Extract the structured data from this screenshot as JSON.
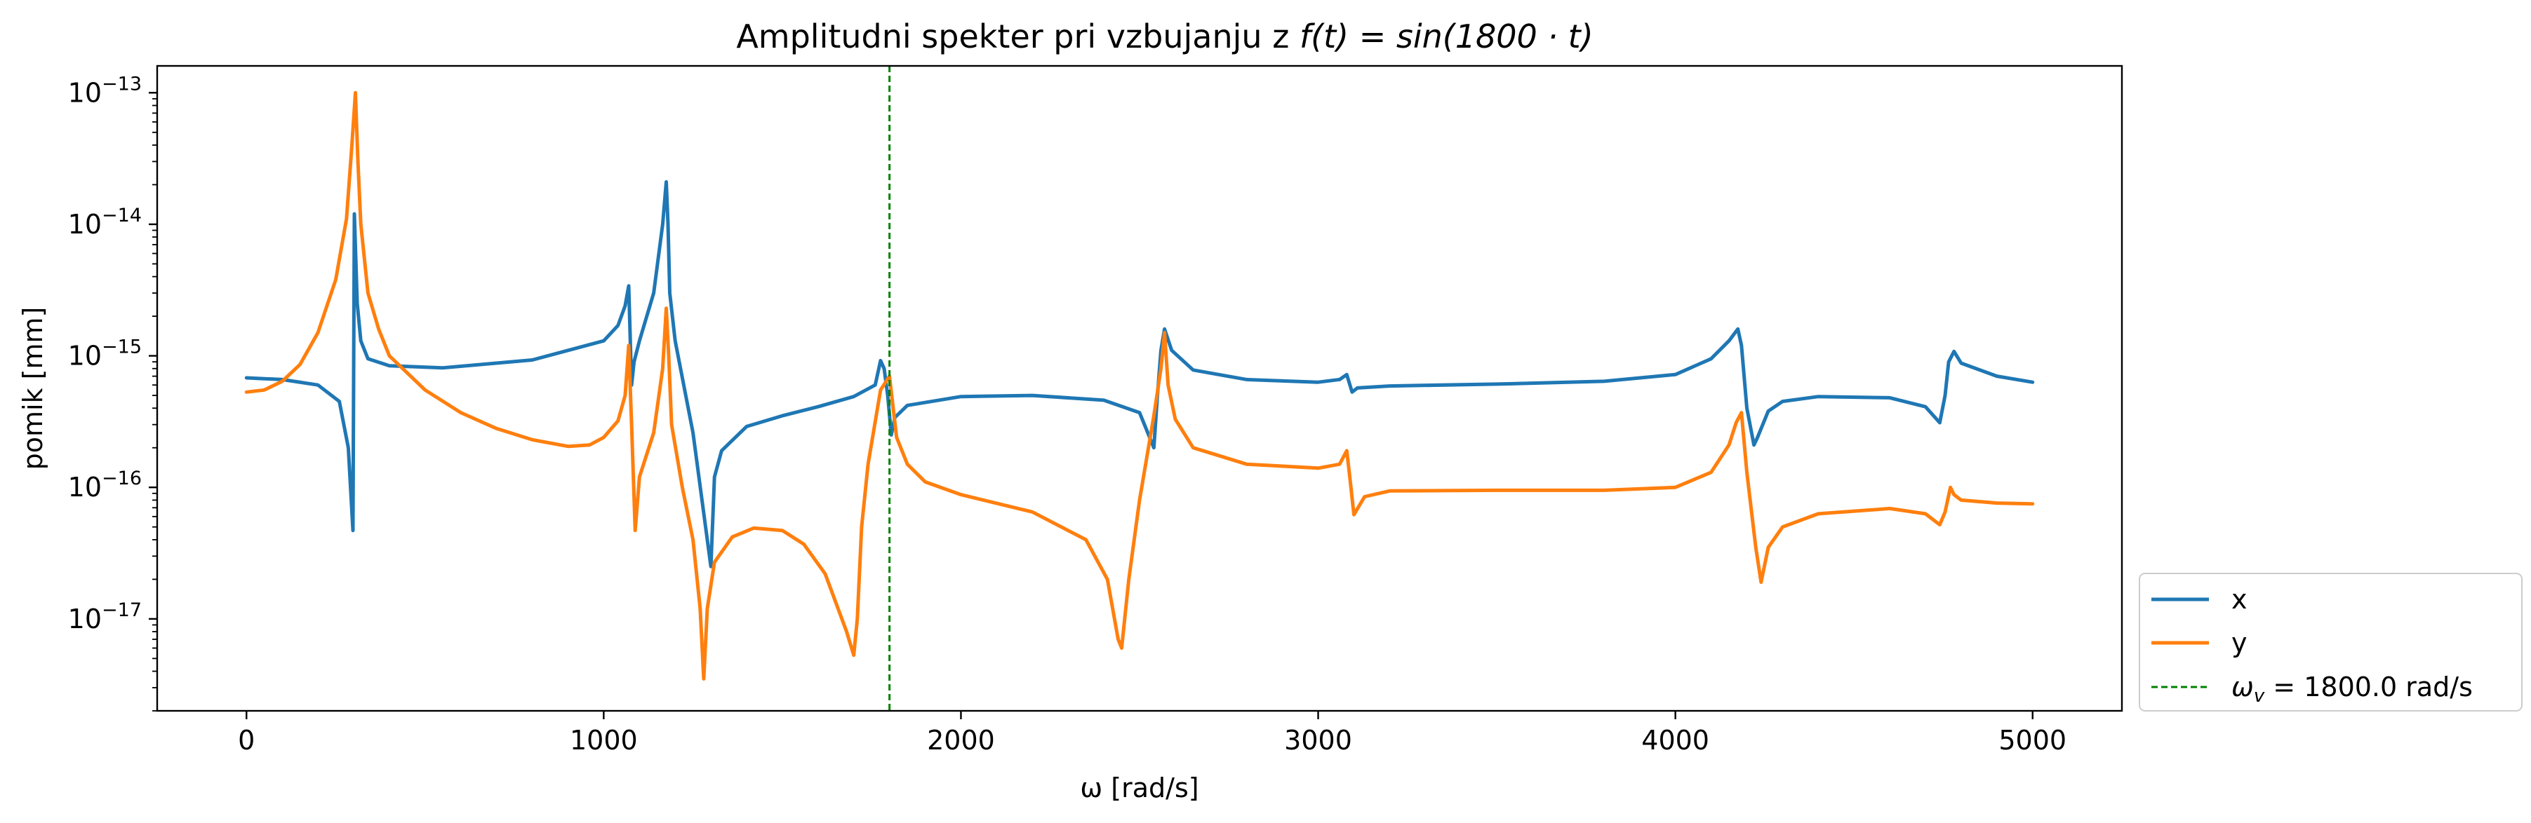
{
  "chart_data": {
    "type": "line",
    "title_prefix": "Amplitudni spekter pri vzbujanju z ",
    "title_math": "f(t) = sin(1800 · t)",
    "xlabel": "ω [rad/s]",
    "ylabel": "pomik [mm]",
    "xlim": [
      -250,
      5250
    ],
    "ylim": [
      2e-18,
      1.6e-13
    ],
    "yscale": "log",
    "x_ticks": [
      0,
      1000,
      2000,
      3000,
      4000,
      5000
    ],
    "y_ticks": [
      {
        "value": 1e-17,
        "base": "10",
        "exp": "−17"
      },
      {
        "value": 1e-16,
        "base": "10",
        "exp": "−16"
      },
      {
        "value": 1e-15,
        "base": "10",
        "exp": "−15"
      },
      {
        "value": 1e-14,
        "base": "10",
        "exp": "−14"
      },
      {
        "value": 1e-13,
        "base": "10",
        "exp": "−13"
      }
    ],
    "grid": false,
    "legend_position": "outside-bottom-right",
    "series": [
      {
        "name": "x",
        "color": "#1f77b4",
        "x": [
          0,
          100,
          200,
          260,
          285,
          298,
          302,
          310,
          320,
          340,
          400,
          550,
          800,
          1000,
          1040,
          1060,
          1070,
          1078,
          1085,
          1100,
          1140,
          1165,
          1175,
          1180,
          1185,
          1200,
          1250,
          1300,
          1310,
          1330,
          1400,
          1500,
          1600,
          1700,
          1760,
          1775,
          1785,
          1795,
          1805,
          1815,
          1850,
          2000,
          2200,
          2400,
          2500,
          2540,
          2550,
          2560,
          2570,
          2590,
          2650,
          2800,
          3000,
          3060,
          3080,
          3095,
          3110,
          3200,
          3500,
          3800,
          4000,
          4100,
          4150,
          4175,
          4185,
          4200,
          4220,
          4230,
          4260,
          4300,
          4400,
          4600,
          4700,
          4740,
          4755,
          4765,
          4780,
          4800,
          4900,
          5000
        ],
        "values": [
          6.8e-16,
          6.6e-16,
          6e-16,
          4.5e-16,
          2e-16,
          4.7e-17,
          1.2e-14,
          2.5e-15,
          1.3e-15,
          9.5e-16,
          8.4e-16,
          8.1e-16,
          9.3e-16,
          1.3e-15,
          1.7e-15,
          2.4e-15,
          3.4e-15,
          6e-16,
          9e-16,
          1.3e-15,
          3e-15,
          1e-14,
          2.1e-14,
          1e-14,
          3e-15,
          1.3e-15,
          2.6e-16,
          2.5e-17,
          1.2e-16,
          1.9e-16,
          2.9e-16,
          3.5e-16,
          4.1e-16,
          4.9e-16,
          6e-16,
          9.2e-16,
          8e-16,
          5e-16,
          2.5e-16,
          3.4e-16,
          4.2e-16,
          4.9e-16,
          5e-16,
          4.6e-16,
          3.7e-16,
          2e-16,
          5e-16,
          1.1e-15,
          1.6e-15,
          1.1e-15,
          7.8e-16,
          6.6e-16,
          6.3e-16,
          6.6e-16,
          7.2e-16,
          5.3e-16,
          5.7e-16,
          5.9e-16,
          6.1e-16,
          6.4e-16,
          7.2e-16,
          9.5e-16,
          1.3e-15,
          1.6e-15,
          1.2e-15,
          4e-16,
          2.1e-16,
          2.4e-16,
          3.8e-16,
          4.5e-16,
          4.9e-16,
          4.8e-16,
          4.1e-16,
          3.1e-16,
          5e-16,
          9e-16,
          1.08e-15,
          8.8e-16,
          7e-16,
          6.3e-16
        ]
      },
      {
        "name": "y",
        "color": "#ff7f0e",
        "x": [
          0,
          50,
          100,
          150,
          200,
          250,
          280,
          295,
          305,
          312,
          320,
          340,
          370,
          400,
          500,
          600,
          700,
          800,
          900,
          960,
          1000,
          1040,
          1060,
          1070,
          1078,
          1088,
          1100,
          1140,
          1165,
          1175,
          1182,
          1190,
          1220,
          1250,
          1270,
          1280,
          1290,
          1310,
          1360,
          1420,
          1500,
          1560,
          1620,
          1680,
          1700,
          1710,
          1722,
          1740,
          1775,
          1800,
          1820,
          1850,
          1900,
          2000,
          2200,
          2350,
          2410,
          2440,
          2450,
          2470,
          2500,
          2540,
          2560,
          2570,
          2580,
          2600,
          2650,
          2800,
          3000,
          3060,
          3080,
          3090,
          3100,
          3130,
          3200,
          3500,
          3800,
          4000,
          4100,
          4150,
          4170,
          4185,
          4200,
          4225,
          4240,
          4260,
          4300,
          4400,
          4600,
          4700,
          4740,
          4755,
          4770,
          4780,
          4800,
          4900,
          5000
        ],
        "values": [
          5.3e-16,
          5.5e-16,
          6.4e-16,
          8.6e-16,
          1.5e-15,
          3.8e-15,
          1.1e-14,
          4e-14,
          1e-13,
          3e-14,
          1e-14,
          3e-15,
          1.6e-15,
          1e-15,
          5.5e-16,
          3.7e-16,
          2.8e-16,
          2.3e-16,
          2.05e-16,
          2.1e-16,
          2.4e-16,
          3.2e-16,
          5e-16,
          1.2e-15,
          3e-16,
          4.7e-17,
          1.2e-16,
          2.6e-16,
          8e-16,
          2.3e-15,
          1e-15,
          3e-16,
          1e-16,
          4e-17,
          1.2e-17,
          3.5e-18,
          1.2e-17,
          2.7e-17,
          4.2e-17,
          4.9e-17,
          4.7e-17,
          3.7e-17,
          2.2e-17,
          8e-18,
          5.3e-18,
          1e-17,
          5e-17,
          1.5e-16,
          5.5e-16,
          7e-16,
          2.4e-16,
          1.5e-16,
          1.1e-16,
          8.8e-17,
          6.5e-17,
          4e-17,
          2e-17,
          7e-18,
          6e-18,
          2e-17,
          8e-17,
          3.5e-16,
          8e-16,
          1.5e-15,
          6e-16,
          3.3e-16,
          2e-16,
          1.5e-16,
          1.4e-16,
          1.5e-16,
          1.9e-16,
          1.1e-16,
          6.2e-17,
          8.5e-17,
          9.4e-17,
          9.5e-17,
          9.5e-17,
          1e-16,
          1.3e-16,
          2.1e-16,
          3.1e-16,
          3.7e-16,
          1.3e-16,
          3.5e-17,
          1.9e-17,
          3.5e-17,
          5e-17,
          6.3e-17,
          6.9e-17,
          6.3e-17,
          5.2e-17,
          6.5e-17,
          1e-16,
          8.8e-17,
          8e-17,
          7.6e-17,
          7.5e-17
        ]
      }
    ],
    "vline": {
      "x": 1800,
      "color": "#008000",
      "style": "dashed",
      "label_symbol": "ω",
      "label_sub": "v",
      "label_rest": " = 1800.0 rad/s"
    }
  }
}
